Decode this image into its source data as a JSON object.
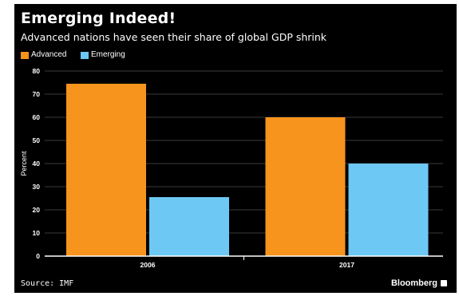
{
  "header": {
    "title": "Emerging Indeed!",
    "subtitle": "Advanced nations have seen their share of global GDP shrink"
  },
  "footer": {
    "source": "Source: IMF",
    "brand": "Bloomberg"
  },
  "chart_data": {
    "type": "bar",
    "categories": [
      "2006",
      "2017"
    ],
    "series": [
      {
        "name": "Advanced",
        "color": "#f7941d",
        "values": [
          74.5,
          60
        ]
      },
      {
        "name": "Emerging",
        "color": "#6dc8f4",
        "values": [
          25.5,
          40
        ]
      }
    ],
    "title": "Emerging Indeed!",
    "subtitle": "Advanced nations have seen their share of global GDP shrink",
    "xlabel": "",
    "ylabel": "Percent",
    "ylim": [
      0,
      80
    ],
    "yticks": [
      0,
      10,
      20,
      30,
      40,
      50,
      60,
      70,
      80
    ],
    "grid": true,
    "legend": "top-left",
    "colors": {
      "background": "#000000",
      "grid": "#3a3a3a",
      "axis": "#ffffff",
      "text": "#ffffff"
    }
  }
}
